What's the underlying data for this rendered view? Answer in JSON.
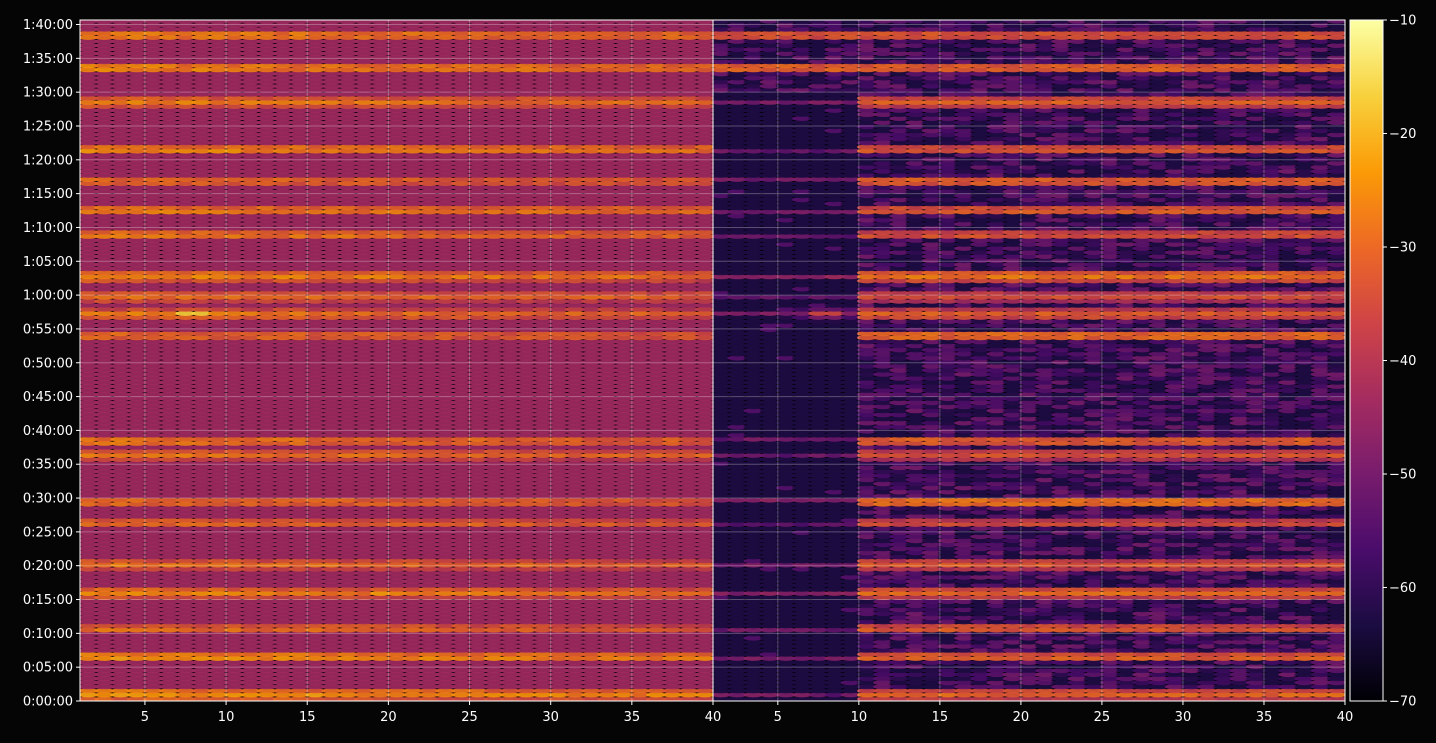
{
  "figure": {
    "background": "#050505",
    "text_color": "#ffffff",
    "grid_color": "#ffffff"
  },
  "chart_data": {
    "type": "heatmap",
    "title": "",
    "xlabel": "",
    "ylabel": "",
    "colormap": "inferno",
    "grid": true,
    "panels": [
      {
        "name": "",
        "x_tick_labels": [
          "5",
          "10",
          "15",
          "20",
          "25",
          "30",
          "35",
          "40"
        ]
      },
      {
        "name": "",
        "x_tick_labels": [
          "5",
          "10",
          "15",
          "20",
          "25",
          "30",
          "35",
          "40"
        ]
      }
    ],
    "x_ticks": [
      5,
      10,
      15,
      20,
      25,
      30,
      35,
      40
    ],
    "xlim": [
      1,
      40
    ],
    "y_ticks": [
      "0:00:00",
      "0:05:00",
      "0:10:00",
      "0:15:00",
      "0:20:00",
      "0:25:00",
      "0:30:00",
      "0:35:00",
      "0:40:00",
      "0:45:00",
      "0:50:00",
      "0:55:00",
      "1:00:00",
      "1:05:00",
      "1:10:00",
      "1:15:00",
      "1:20:00",
      "1:25:00",
      "1:30:00",
      "1:35:00",
      "1:40:00"
    ],
    "ylim_seconds": [
      0,
      6040
    ],
    "colorbar": {
      "ticks": [
        "−70",
        "−60",
        "−50",
        "−40",
        "−30",
        "−20",
        "−10"
      ],
      "range": [
        -70,
        -10
      ],
      "stops": [
        "#000004",
        "#1b0c41",
        "#4a0c6b",
        "#781c6d",
        "#a52c60",
        "#cf4446",
        "#ed6925",
        "#fb9b06",
        "#f7d13d",
        "#fcffa4"
      ]
    },
    "dominant_rows_seconds": [
      60,
      390,
      640,
      960,
      1210,
      1575,
      1765,
      2185,
      2305,
      3240,
      3430,
      3590,
      3770,
      4135,
      4350,
      4610,
      4890,
      5315,
      5615,
      5905
    ],
    "hotspots": [
      {
        "panel": 0,
        "x": 8,
        "t": 3435,
        "value": -14
      },
      {
        "panel": 0,
        "x": 19.5,
        "t": 960,
        "value": -22
      },
      {
        "panel": 0,
        "x": 1.5,
        "t": 960,
        "value": -28
      },
      {
        "panel": 0,
        "x": 5,
        "t": 5905,
        "value": -23
      },
      {
        "panel": 0,
        "x": 14,
        "t": 3770,
        "value": -24
      },
      {
        "panel": 0,
        "x": 22,
        "t": 5315,
        "value": -24
      },
      {
        "panel": 1,
        "x": 8,
        "t": 3435,
        "value": -33
      },
      {
        "panel": 1,
        "x": 19.5,
        "t": 960,
        "value": -34
      }
    ],
    "panel_2_empty_region": {
      "x": [
        1,
        10
      ],
      "t": [
        0,
        5400
      ]
    }
  }
}
